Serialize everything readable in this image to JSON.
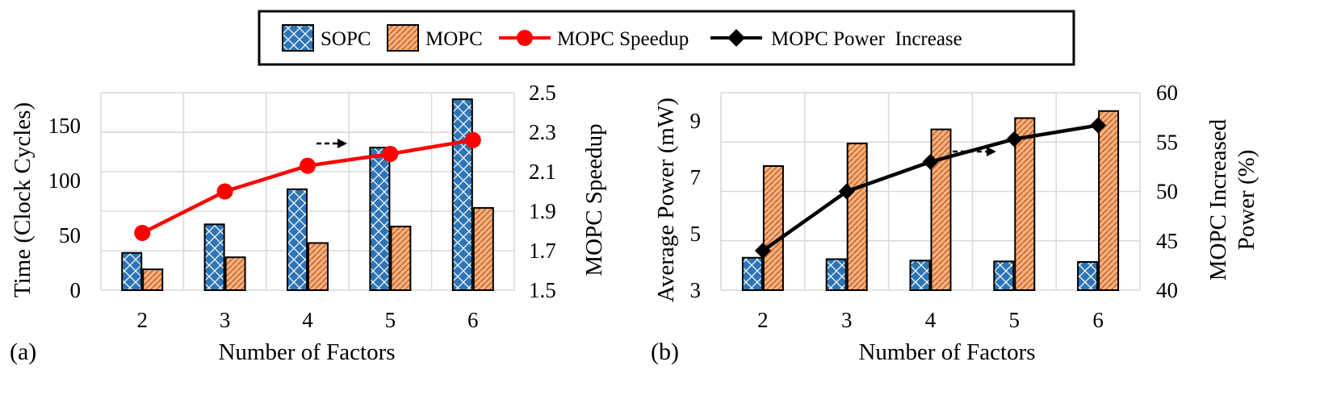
{
  "legend": {
    "sopc": "SOPC",
    "mopc": "MOPC",
    "speedup": "MOPC Speedup",
    "power_increase": "MOPC Power  Increase"
  },
  "colors": {
    "sopc": "#2e75b6",
    "mopc": "#f4b183",
    "speedup_line": "#ff0000",
    "power_line": "#000000",
    "grid": "#d9d9d9"
  },
  "chart_data": [
    {
      "type": "bar",
      "panel_label": "(a)",
      "categories": [
        "2",
        "3",
        "4",
        "5",
        "6"
      ],
      "xlabel": "Number of Factors",
      "ylabel": "Time (Clock Cycles)",
      "ylim": [
        0,
        180
      ],
      "yticks": [
        0,
        50,
        100,
        150
      ],
      "y2label": "MOPC Speedup",
      "y2lim": [
        1.5,
        2.5
      ],
      "y2ticks": [
        "1.5",
        "1.7",
        "1.9",
        "2.1",
        "2.3",
        "2.5"
      ],
      "grid": true,
      "series": [
        {
          "name": "SOPC",
          "type": "bar",
          "axis": "left",
          "values": [
            34,
            60,
            92,
            130,
            174
          ]
        },
        {
          "name": "MOPC",
          "type": "bar",
          "axis": "left",
          "values": [
            19,
            30,
            43,
            58,
            75
          ]
        },
        {
          "name": "MOPC Speedup",
          "type": "line",
          "axis": "right",
          "values": [
            1.79,
            2.0,
            2.13,
            2.19,
            2.26
          ]
        }
      ]
    },
    {
      "type": "bar",
      "panel_label": "(b)",
      "categories": [
        "2",
        "3",
        "4",
        "5",
        "6"
      ],
      "xlabel": "Number of Factors",
      "ylabel": "Average Power (mW)",
      "ylim": [
        3,
        10
      ],
      "yticks": [
        3,
        5,
        7,
        9
      ],
      "y2label_line1": "MOPC Increased",
      "y2label_line2": "Power (%)",
      "y2lim": [
        40,
        60
      ],
      "y2ticks": [
        "40",
        "45",
        "50",
        "55",
        "60"
      ],
      "grid": true,
      "series": [
        {
          "name": "SOPC",
          "type": "bar",
          "axis": "left",
          "values": [
            4.15,
            4.1,
            4.05,
            4.02,
            4.0
          ]
        },
        {
          "name": "MOPC",
          "type": "bar",
          "axis": "left",
          "values": [
            7.4,
            8.2,
            8.7,
            9.1,
            9.35
          ]
        },
        {
          "name": "MOPC Power  Increase",
          "type": "line",
          "axis": "right",
          "values": [
            44,
            50,
            53,
            55.3,
            56.7
          ]
        }
      ]
    }
  ]
}
